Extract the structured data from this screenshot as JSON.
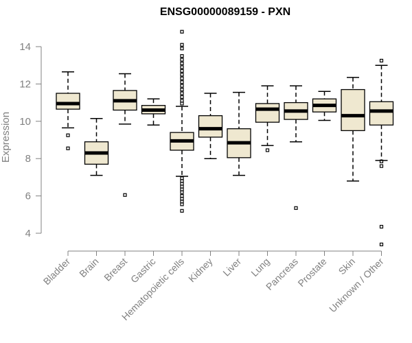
{
  "chart_data": {
    "type": "boxplot",
    "title": "ENSG00000089159 - PXN",
    "xlabel": "",
    "ylabel": "Expression",
    "ylim": [
      3.0,
      15.0
    ],
    "yticks": [
      4,
      6,
      8,
      10,
      12,
      14
    ],
    "categories": [
      "Bladder",
      "Brain",
      "Breast",
      "Gastric",
      "Hematopoietic cells",
      "Kidney",
      "Liver",
      "Lung",
      "Pancreas",
      "Prostate",
      "Skin",
      "Unknown / Other"
    ],
    "boxes": [
      {
        "category": "Bladder",
        "min": 9.65,
        "q1": 10.65,
        "median": 10.95,
        "q3": 11.5,
        "max": 12.65,
        "outliers": [
          9.25,
          8.55
        ]
      },
      {
        "category": "Brain",
        "min": 7.1,
        "q1": 7.7,
        "median": 8.3,
        "q3": 8.9,
        "max": 10.15,
        "outliers": []
      },
      {
        "category": "Breast",
        "min": 9.85,
        "q1": 10.6,
        "median": 11.1,
        "q3": 11.65,
        "max": 12.55,
        "outliers": [
          6.05
        ]
      },
      {
        "category": "Gastric",
        "min": 9.8,
        "q1": 10.4,
        "median": 10.6,
        "q3": 10.85,
        "max": 11.2,
        "outliers": []
      },
      {
        "category": "Hematopoietic cells",
        "min": 7.05,
        "q1": 8.45,
        "median": 8.95,
        "q3": 9.4,
        "max": 10.8,
        "outliers": [
          14.8,
          14.1,
          13.9,
          13.5,
          13.3,
          13.1,
          12.9,
          12.7,
          12.5,
          12.3,
          12.1,
          11.9,
          11.7,
          11.5,
          11.3,
          11.1,
          10.95,
          6.95,
          6.8,
          6.65,
          6.5,
          6.35,
          6.2,
          6.0,
          5.85,
          5.7,
          5.55,
          5.2
        ]
      },
      {
        "category": "Kidney",
        "min": 8.0,
        "q1": 9.15,
        "median": 9.6,
        "q3": 10.3,
        "max": 11.5,
        "outliers": []
      },
      {
        "category": "Liver",
        "min": 7.1,
        "q1": 8.05,
        "median": 8.85,
        "q3": 9.6,
        "max": 11.55,
        "outliers": []
      },
      {
        "category": "Lung",
        "min": 8.7,
        "q1": 9.95,
        "median": 10.65,
        "q3": 10.95,
        "max": 11.9,
        "outliers": [
          8.45
        ]
      },
      {
        "category": "Pancreas",
        "min": 8.9,
        "q1": 10.1,
        "median": 10.55,
        "q3": 11.0,
        "max": 11.9,
        "outliers": [
          5.35
        ]
      },
      {
        "category": "Prostate",
        "min": 10.05,
        "q1": 10.5,
        "median": 10.85,
        "q3": 11.2,
        "max": 11.6,
        "outliers": []
      },
      {
        "category": "Skin",
        "min": 6.8,
        "q1": 9.5,
        "median": 10.3,
        "q3": 11.7,
        "max": 12.35,
        "outliers": []
      },
      {
        "category": "Unknown / Other",
        "min": 7.9,
        "q1": 9.8,
        "median": 10.55,
        "q3": 11.05,
        "max": 13.0,
        "outliers": [
          13.25,
          7.85,
          7.6,
          4.35,
          3.4
        ]
      }
    ],
    "colors": {
      "box_fill": "#efe8d0",
      "stroke": "#000000",
      "axis": "#808080"
    }
  }
}
